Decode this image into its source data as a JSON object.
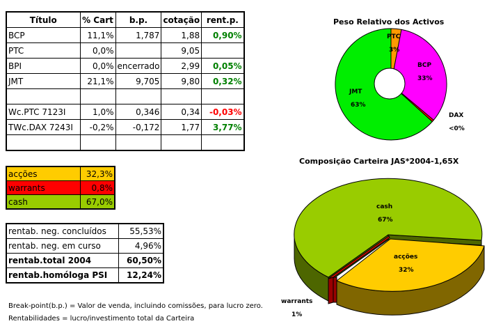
{
  "holdings_table": {
    "headers": [
      "Título",
      "% Cart",
      "b.p.",
      "cotação",
      "rent.p."
    ],
    "rows": [
      {
        "titulo": "BCP",
        "cart": "11,1%",
        "bp": "1,787",
        "cotacao": "1,88",
        "rent": "0,90%",
        "rent_sign": "pos"
      },
      {
        "titulo": "PTC",
        "cart": "0,0%",
        "bp": "",
        "cotacao": "9,05",
        "rent": "",
        "rent_sign": ""
      },
      {
        "titulo": "BPI",
        "cart": "0,0%",
        "bp": "encerrado",
        "cotacao": "2,99",
        "rent": "0,05%",
        "rent_sign": "pos"
      },
      {
        "titulo": "JMT",
        "cart": "21,1%",
        "bp": "9,705",
        "cotacao": "9,80",
        "rent": "0,32%",
        "rent_sign": "pos"
      },
      {
        "titulo": "",
        "cart": "",
        "bp": "",
        "cotacao": "",
        "rent": "",
        "rent_sign": ""
      },
      {
        "titulo": "Wc.PTC 7123I",
        "cart": "1,0%",
        "bp": "0,346",
        "cotacao": "0,34",
        "rent": "-0,03%",
        "rent_sign": "neg"
      },
      {
        "titulo": "TWc.DAX 7243I",
        "cart": "-0,2%",
        "bp": "-0,172",
        "cotacao": "1,77",
        "rent": "3,77%",
        "rent_sign": "pos"
      },
      {
        "titulo": "",
        "cart": "",
        "bp": "",
        "cotacao": "",
        "rent": "",
        "rent_sign": ""
      }
    ]
  },
  "composition_table": {
    "rows": [
      {
        "label": "acções",
        "value": "32,3%",
        "color": "#ffcc00"
      },
      {
        "label": "warrants",
        "value": "0,8%",
        "color": "#ff0000"
      },
      {
        "label": "cash",
        "value": "67,0%",
        "color": "#99cc00"
      }
    ]
  },
  "returns_table": {
    "rows": [
      {
        "label": "rentab. neg. concluídos",
        "value": "55,53%",
        "bold": false
      },
      {
        "label": "rentab. neg. em curso",
        "value": "4,96%",
        "bold": false
      },
      {
        "label": "rentab.total 2004",
        "value": "60,50%",
        "bold": true
      },
      {
        "label": "rentab.homóloga PSI",
        "value": "12,24%",
        "bold": true
      }
    ]
  },
  "notes": {
    "line1": "Break-point(b.p.) = Valor de venda, incluindo comissões, para lucro zero.",
    "line2": "Rentabilidades = lucro/investimento total da Carteira"
  },
  "chart_data": [
    {
      "type": "pie",
      "subtype": "doughnut",
      "title": "Peso Relativo dos Activos",
      "categories": [
        "PTC",
        "BCP",
        "DAX",
        "JMT"
      ],
      "values": [
        3,
        33,
        0.5,
        63
      ],
      "labels": [
        "3%",
        "33%",
        "<0%",
        "63%"
      ],
      "colors": [
        "#ff9900",
        "#ff00ff",
        "#ff0000",
        "#00ee00"
      ]
    },
    {
      "type": "pie",
      "subtype": "3d-exploded",
      "title": "Composição Carteira JAS*2004-1,65X",
      "categories": [
        "cash",
        "acções",
        "warrants"
      ],
      "values": [
        67,
        32,
        1
      ],
      "labels": [
        "67%",
        "32%",
        "1%"
      ],
      "colors": [
        "#99cc00",
        "#ffcc00",
        "#ff0000"
      ]
    }
  ],
  "donut": {
    "title": "Peso Relativo dos Activos",
    "labels": {
      "ptc_name": "PTC",
      "ptc_pct": "3%",
      "bcp_name": "BCP",
      "bcp_pct": "33%",
      "jmt_name": "JMT",
      "jmt_pct": "63%",
      "dax_name": "DAX",
      "dax_pct": "<0%"
    }
  },
  "pie3d": {
    "title": "Composição Carteira JAS*2004-1,65X",
    "labels": {
      "cash_name": "cash",
      "cash_pct": "67%",
      "acoes_name": "acções",
      "acoes_pct": "32%",
      "warrants_name": "warrants",
      "warrants_pct": "1%"
    }
  }
}
